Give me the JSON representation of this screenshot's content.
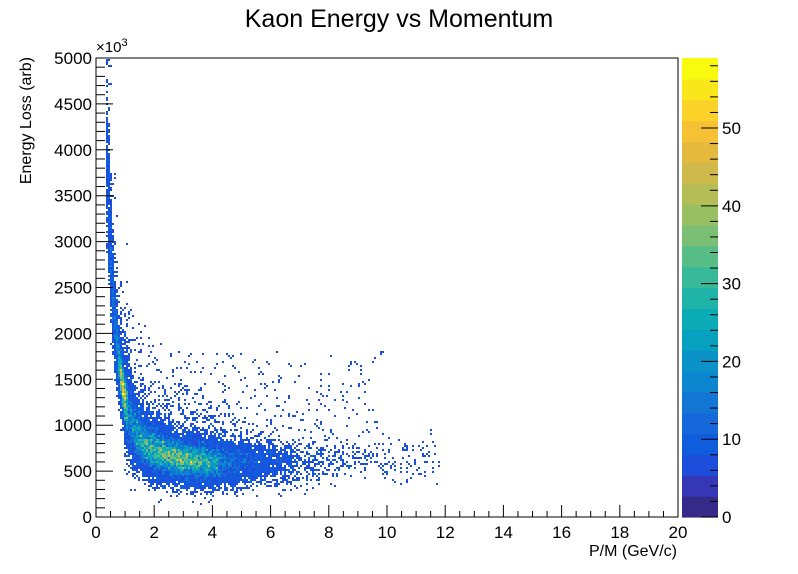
{
  "chart_data": {
    "type": "heatmap",
    "title": "Kaon Energy vs Momentum",
    "xlabel": "P/M (GeV/c)",
    "ylabel": "Energy Loss (arb)",
    "y_multiplier_base": "×10",
    "y_multiplier_exp": "3",
    "xlim": [
      0,
      20
    ],
    "ylim": [
      0,
      5000
    ],
    "x_ticks": [
      0,
      2,
      4,
      6,
      8,
      10,
      12,
      14,
      16,
      18,
      20
    ],
    "x_tick_labels": [
      "0",
      "2",
      "4",
      "6",
      "8",
      "10",
      "12",
      "14",
      "16",
      "18",
      "20"
    ],
    "y_ticks": [
      0,
      500,
      1000,
      1500,
      2000,
      2500,
      3000,
      3500,
      4000,
      4500,
      5000
    ],
    "y_tick_labels": [
      "0",
      "500",
      "1000",
      "1500",
      "2000",
      "2500",
      "3000",
      "3500",
      "4000",
      "4500",
      "5000"
    ],
    "zlim": [
      0,
      59
    ],
    "z_ticks": [
      0,
      10,
      20,
      30,
      40,
      50
    ],
    "z_tick_labels": [
      "0",
      "10",
      "20",
      "30",
      "40",
      "50"
    ],
    "grid": false,
    "colormap": "parula",
    "palette": [
      "#352a87",
      "#3637b6",
      "#1c4edb",
      "#0f5cdd",
      "#1468d9",
      "#1476d4",
      "#0c86cf",
      "#0b93c8",
      "#07a1c0",
      "#0bacb6",
      "#20b4a8",
      "#38b998",
      "#57bd86",
      "#7abf74",
      "#99bf63",
      "#b5bd57",
      "#cfb94a",
      "#e5b93e",
      "#f6c134",
      "#fbd328",
      "#f9e71b",
      "#f9fb0e"
    ],
    "band": {
      "description": "kaon dE/dx band",
      "points": [
        {
          "x": 0.4,
          "y": 3800
        },
        {
          "x": 0.5,
          "y": 2900
        },
        {
          "x": 0.6,
          "y": 2300
        },
        {
          "x": 0.8,
          "y": 1650
        },
        {
          "x": 1.0,
          "y": 1250
        },
        {
          "x": 1.3,
          "y": 950
        },
        {
          "x": 1.7,
          "y": 780
        },
        {
          "x": 2.2,
          "y": 690
        },
        {
          "x": 3.0,
          "y": 620
        },
        {
          "x": 4.0,
          "y": 590
        },
        {
          "x": 6.0,
          "y": 590
        },
        {
          "x": 8.0,
          "y": 600
        },
        {
          "x": 10.0,
          "y": 610
        },
        {
          "x": 11.5,
          "y": 620
        }
      ],
      "peak_x": 2.5,
      "peak_y": 640,
      "x_extent": [
        0.35,
        12.0
      ]
    }
  }
}
